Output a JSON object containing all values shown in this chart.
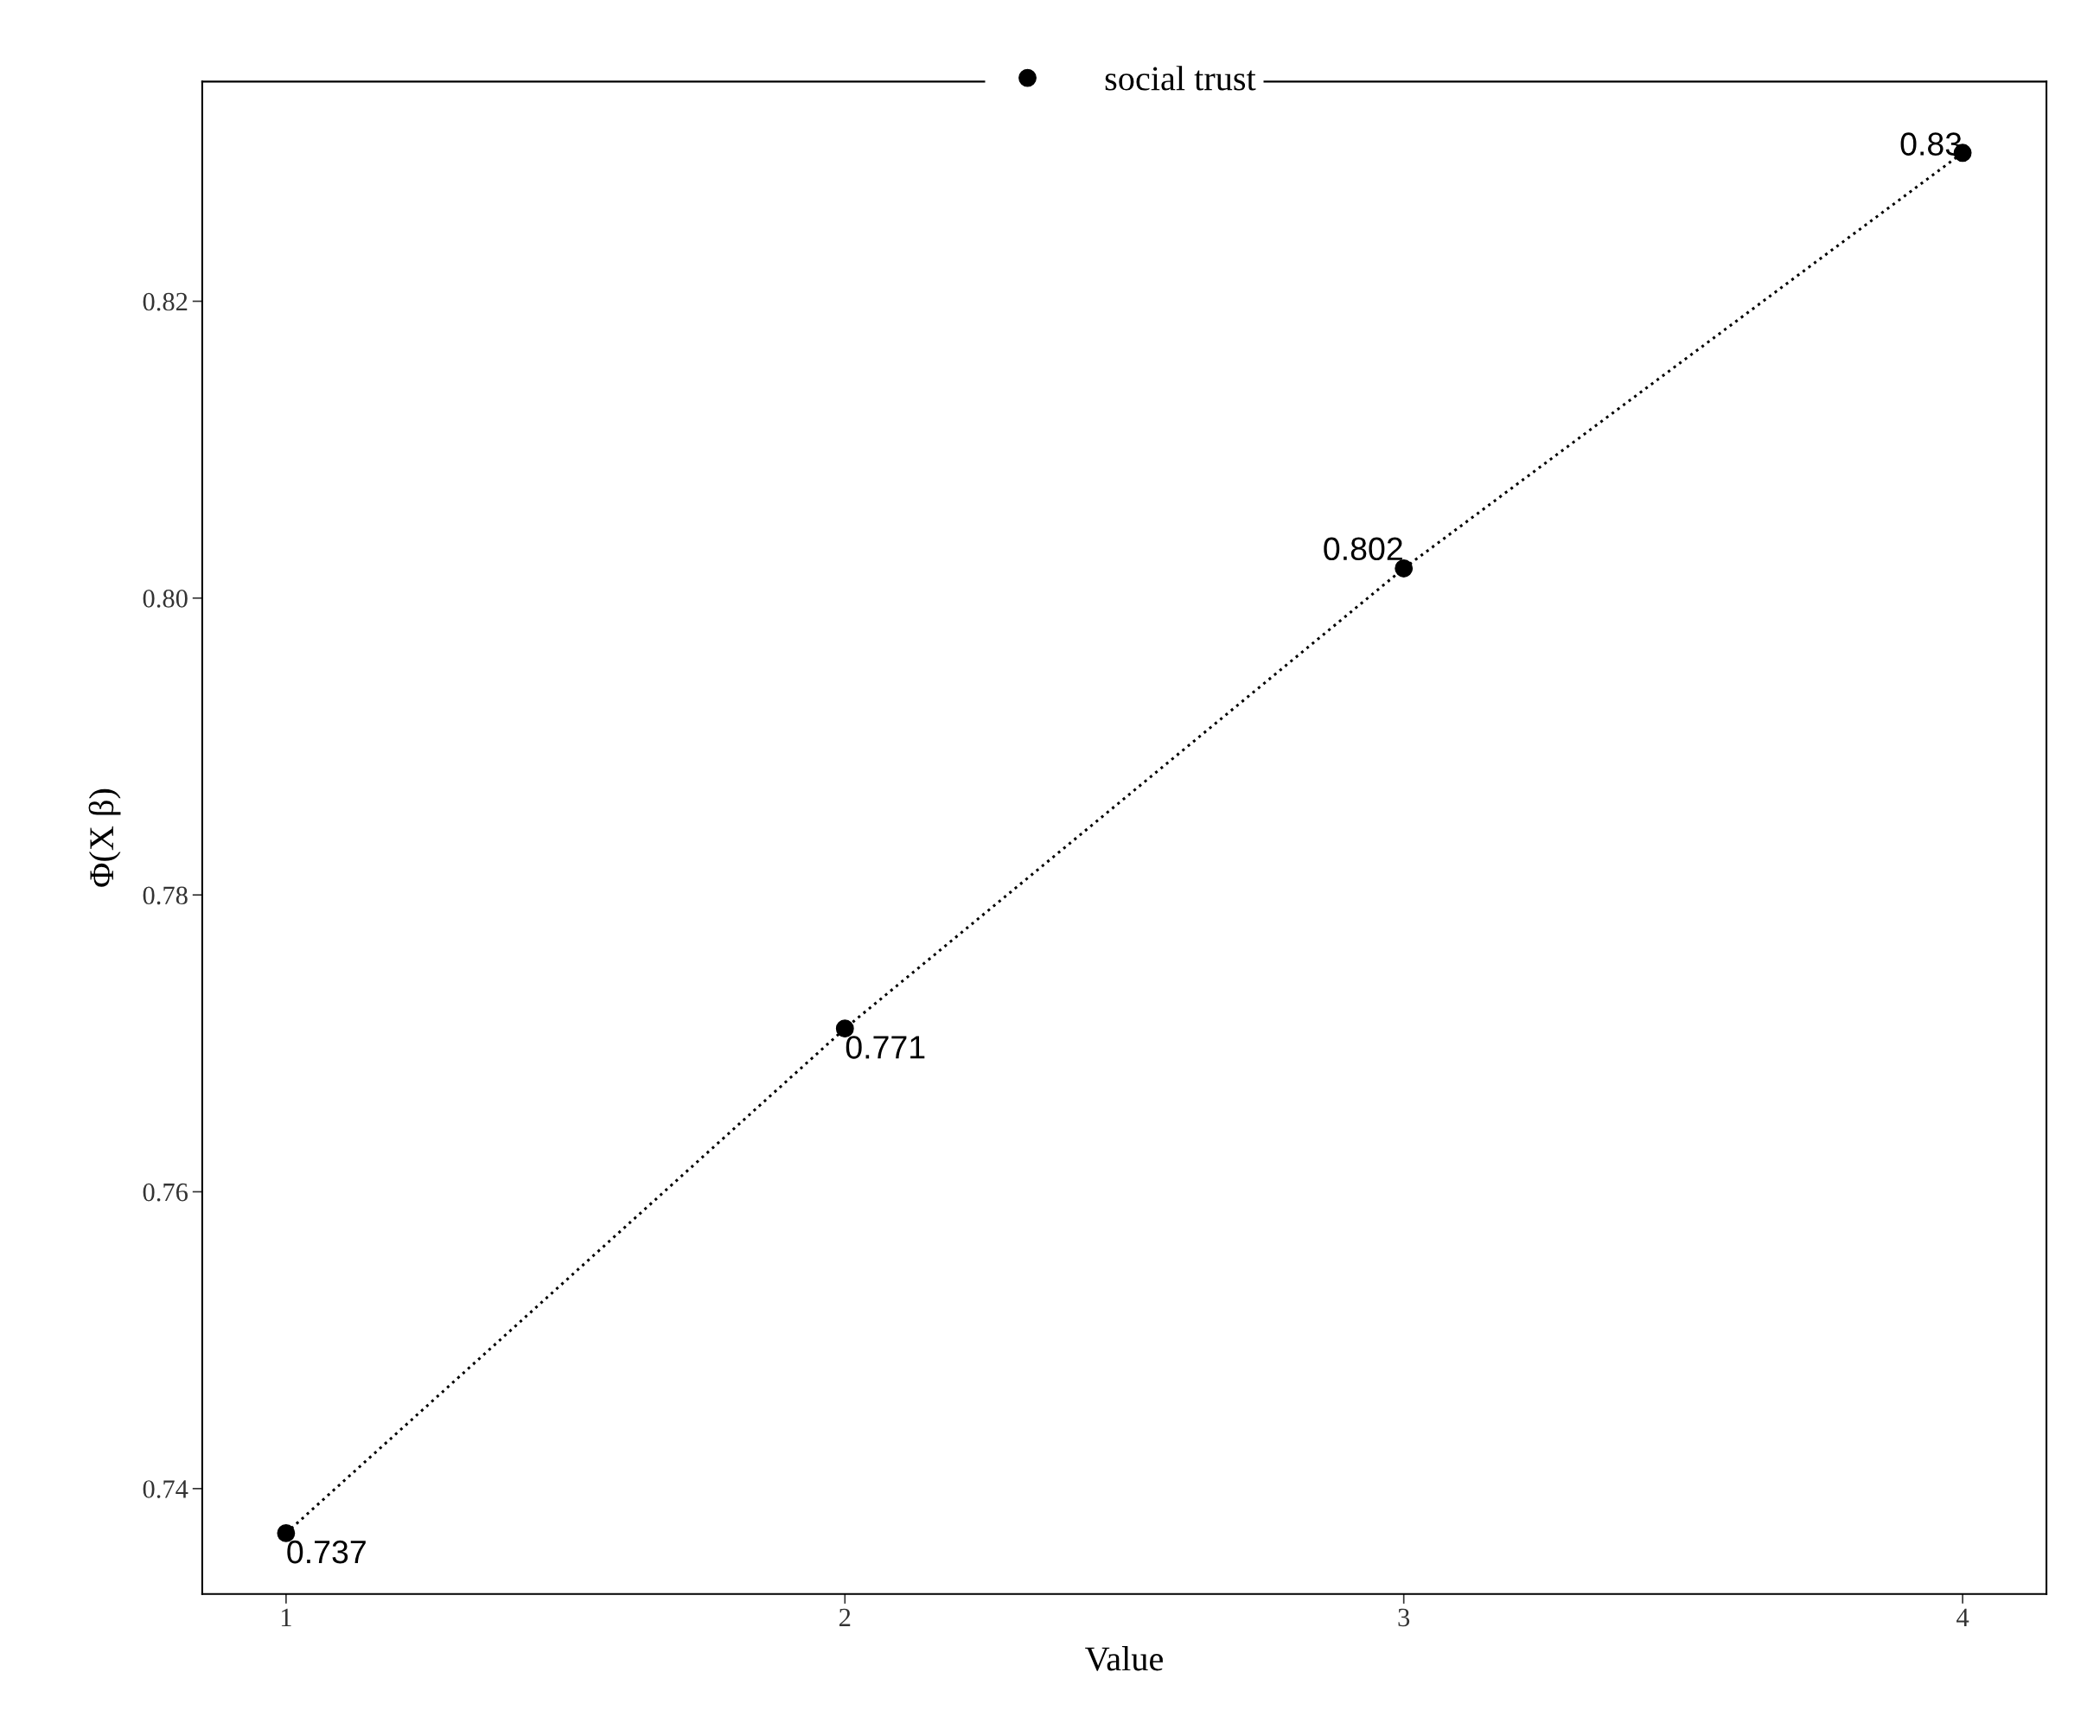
{
  "chart_data": {
    "type": "line",
    "xlabel": "Value",
    "ylabel": "Φ(X β)",
    "x": [
      1,
      2,
      3,
      4
    ],
    "series": [
      {
        "name": "social trust",
        "color": "#000000",
        "values": [
          0.737,
          0.771,
          0.802,
          0.83
        ]
      }
    ],
    "data_labels": true,
    "marker": "circle",
    "line_style": "dotted",
    "legend": "top",
    "grid": false,
    "xlim": [
      0.85,
      4.15
    ],
    "xticks": [
      1,
      2,
      3,
      4
    ],
    "ylim": [
      0.7329,
      0.8348
    ],
    "yticks": [
      0.74,
      0.76,
      0.78,
      {
        "value": 0.8,
        "label": "0.80"
      },
      0.82
    ]
  }
}
